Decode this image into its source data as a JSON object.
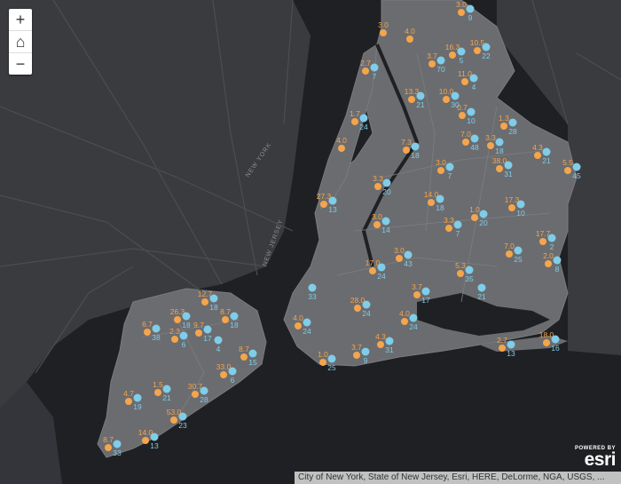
{
  "map": {
    "colors": {
      "background_land": "#3a3b3e",
      "water": "#1f2023",
      "nyc_land": "#6b6c70",
      "orange_marker": "#f5a54a",
      "blue_marker": "#7fcde8"
    },
    "road_labels": [
      "NEW JERSEY",
      "NEW YORK"
    ],
    "markers": [
      {
        "orange": "3.0",
        "blue": "9"
      },
      {
        "orange": "3.0",
        "blue": ""
      },
      {
        "orange": "4.0",
        "blue": ""
      },
      {
        "orange": "16.3",
        "blue": "5"
      },
      {
        "orange": "10.5",
        "blue": "22"
      },
      {
        "orange": "3.7",
        "blue": "70"
      },
      {
        "orange": "2.7",
        "blue": "7"
      },
      {
        "orange": "11.0",
        "blue": "4"
      },
      {
        "orange": "13.3",
        "blue": "21"
      },
      {
        "orange": "10.0",
        "blue": "30"
      },
      {
        "orange": "0.7",
        "blue": "10"
      },
      {
        "orange": "1.7",
        "blue": "24"
      },
      {
        "orange": "1.3",
        "blue": "28"
      },
      {
        "orange": "7.0",
        "blue": "48"
      },
      {
        "orange": "3.3",
        "blue": "18"
      },
      {
        "orange": "4.0",
        "blue": ""
      },
      {
        "orange": "7.3",
        "blue": "18"
      },
      {
        "orange": "38.0",
        "blue": "31"
      },
      {
        "orange": "4.3",
        "blue": "21"
      },
      {
        "orange": "5.5",
        "blue": "45"
      },
      {
        "orange": "3.0",
        "blue": "7"
      },
      {
        "orange": "3.3",
        "blue": "20"
      },
      {
        "orange": "27.3",
        "blue": "13"
      },
      {
        "orange": "14.0",
        "blue": "18"
      },
      {
        "orange": "17.3",
        "blue": "10"
      },
      {
        "orange": "3.0",
        "blue": "14"
      },
      {
        "orange": "1.0",
        "blue": "20"
      },
      {
        "orange": "3.3",
        "blue": "7"
      },
      {
        "orange": "17.7",
        "blue": "2"
      },
      {
        "orange": "2.0",
        "blue": "8"
      },
      {
        "orange": "7.0",
        "blue": "25"
      },
      {
        "orange": "3.0",
        "blue": "43"
      },
      {
        "orange": "17.0",
        "blue": "24"
      },
      {
        "orange": "5.3",
        "blue": "35"
      },
      {
        "orange": "",
        "blue": "21"
      },
      {
        "orange": "",
        "blue": "33"
      },
      {
        "orange": "28.0",
        "blue": "24"
      },
      {
        "orange": "3.7",
        "blue": "17"
      },
      {
        "orange": "12.7",
        "blue": "18"
      },
      {
        "orange": "26.3",
        "blue": "18"
      },
      {
        "orange": "9.7",
        "blue": "17"
      },
      {
        "orange": "8.7",
        "blue": "18"
      },
      {
        "orange": "6.7",
        "blue": "38"
      },
      {
        "orange": "2.3",
        "blue": "6"
      },
      {
        "orange": "",
        "blue": "4"
      },
      {
        "orange": "4.0",
        "blue": "24"
      },
      {
        "orange": "4.0",
        "blue": "24"
      },
      {
        "orange": "8.7",
        "blue": "15"
      },
      {
        "orange": "33.0",
        "blue": "6"
      },
      {
        "orange": "1.0",
        "blue": "25"
      },
      {
        "orange": "3.7",
        "blue": "9"
      },
      {
        "orange": "4.3",
        "blue": "31"
      },
      {
        "orange": "2.7",
        "blue": "13"
      },
      {
        "orange": "18.0",
        "blue": "16"
      },
      {
        "orange": "4.7",
        "blue": "19"
      },
      {
        "orange": "1.5",
        "blue": "21"
      },
      {
        "orange": "30.7",
        "blue": "28"
      },
      {
        "orange": "53.0",
        "blue": "23"
      },
      {
        "orange": "14.0",
        "blue": "13"
      },
      {
        "orange": "8.7",
        "blue": "33"
      }
    ]
  },
  "controls": {
    "zoom_in": "+",
    "home": "⌂",
    "zoom_out": "−"
  },
  "attribution": "City of New York, State of New Jersey, Esri, HERE, DeLorme, NGA, USGS, ...",
  "branding": {
    "powered_by": "POWERED BY",
    "logo": "esri"
  }
}
